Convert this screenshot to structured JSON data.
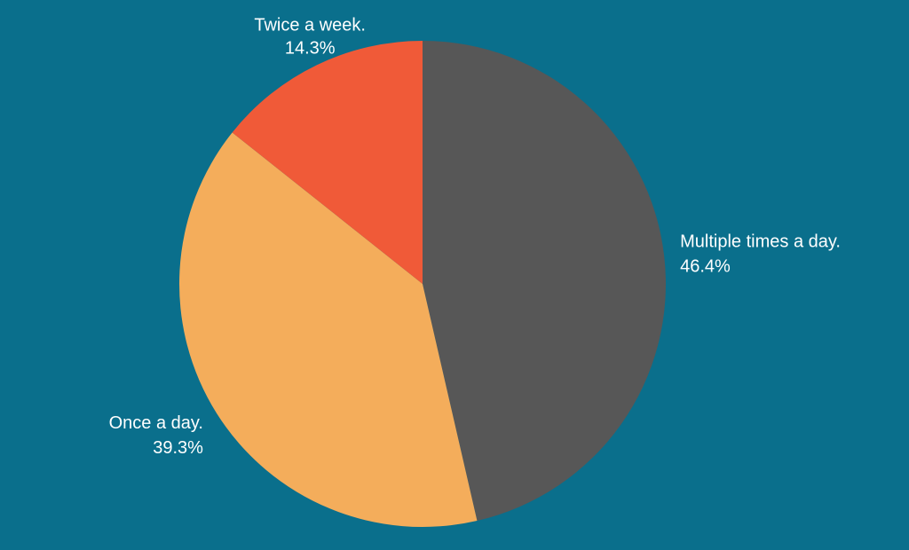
{
  "chart_data": {
    "type": "pie",
    "categories": [
      "Multiple times a day.",
      "Once a day.",
      "Twice a week."
    ],
    "values": [
      46.4,
      39.3,
      14.3
    ],
    "value_labels": [
      "46.4%",
      "39.3%",
      "14.3%"
    ],
    "colors": [
      "#575757",
      "#f4ad5b",
      "#f05a38"
    ]
  }
}
